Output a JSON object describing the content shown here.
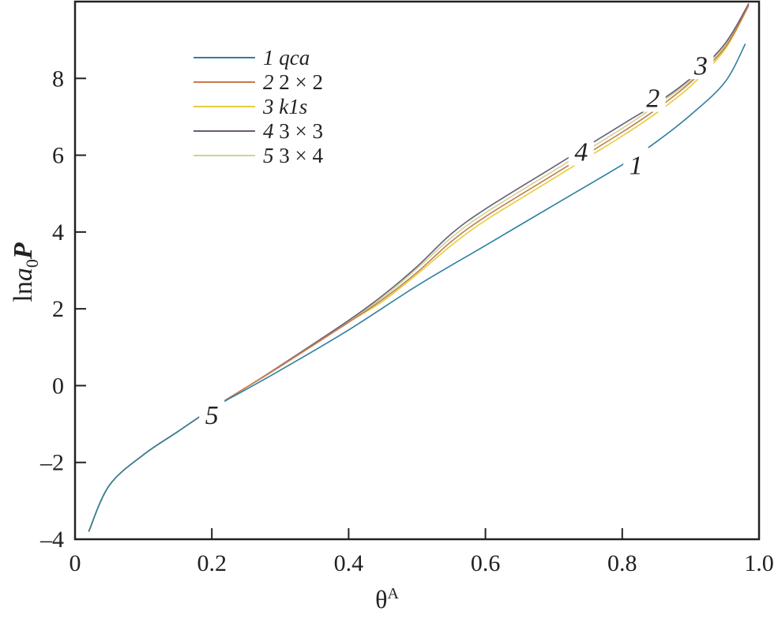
{
  "chart_data": {
    "type": "line",
    "title": "",
    "xlabel": "θ",
    "xlabel_sup": "A",
    "ylabel_prefix": "ln",
    "ylabel_a": "a",
    "ylabel_sub": "0",
    "ylabel_p": "P",
    "xlim": [
      0,
      1.0
    ],
    "ylim": [
      -4,
      10
    ],
    "xticks": [
      0,
      0.2,
      0.4,
      0.6,
      0.8,
      1.0
    ],
    "xtick_labels": [
      "0",
      "0.2",
      "0.4",
      "0.6",
      "0.8",
      "1.0"
    ],
    "yticks": [
      -4,
      -2,
      0,
      2,
      4,
      6,
      8
    ],
    "ytick_labels": [
      "–4",
      "–2",
      "0",
      "2",
      "4",
      "6",
      "8"
    ],
    "grid": false,
    "legend_position": "top-left",
    "series": [
      {
        "name": "qca",
        "num": "1",
        "color": "#2e7fa0",
        "x": [
          0.02,
          0.05,
          0.1,
          0.15,
          0.2,
          0.25,
          0.3,
          0.4,
          0.5,
          0.6,
          0.7,
          0.8,
          0.85,
          0.9,
          0.95,
          0.98
        ],
        "y": [
          -3.8,
          -2.6,
          -1.8,
          -1.2,
          -0.6,
          -0.1,
          0.4,
          1.45,
          2.6,
          3.65,
          4.7,
          5.75,
          6.35,
          7.05,
          7.9,
          8.9
        ]
      },
      {
        "name": "2 × 2",
        "num": "2",
        "color": "#c87a50",
        "x": [
          0.02,
          0.05,
          0.1,
          0.15,
          0.2,
          0.25,
          0.3,
          0.4,
          0.45,
          0.5,
          0.55,
          0.6,
          0.7,
          0.8,
          0.85,
          0.9,
          0.95,
          0.985
        ],
        "y": [
          -3.8,
          -2.6,
          -1.8,
          -1.2,
          -0.6,
          -0.05,
          0.5,
          1.65,
          2.25,
          2.95,
          3.75,
          4.4,
          5.5,
          6.6,
          7.2,
          7.9,
          8.8,
          9.9
        ]
      },
      {
        "name": "k1s",
        "num": "3",
        "color": "#e0cf3c",
        "x": [
          0.02,
          0.05,
          0.1,
          0.15,
          0.2,
          0.25,
          0.3,
          0.4,
          0.45,
          0.5,
          0.55,
          0.6,
          0.7,
          0.8,
          0.85,
          0.9,
          0.95,
          0.985
        ],
        "y": [
          -3.8,
          -2.6,
          -1.8,
          -1.2,
          -0.6,
          -0.05,
          0.5,
          1.65,
          2.2,
          2.9,
          3.65,
          4.3,
          5.4,
          6.5,
          7.1,
          7.8,
          8.75,
          9.9
        ]
      },
      {
        "name": "3 × 3",
        "num": "4",
        "color": "#6a5a7a",
        "x": [
          0.02,
          0.05,
          0.1,
          0.15,
          0.2,
          0.25,
          0.3,
          0.4,
          0.45,
          0.5,
          0.55,
          0.6,
          0.7,
          0.8,
          0.85,
          0.9,
          0.95,
          0.985
        ],
        "y": [
          -3.8,
          -2.6,
          -1.8,
          -1.2,
          -0.6,
          -0.05,
          0.52,
          1.7,
          2.35,
          3.1,
          3.95,
          4.6,
          5.7,
          6.8,
          7.35,
          8.0,
          8.9,
          9.95
        ]
      },
      {
        "name": "3 × 4",
        "num": "5",
        "color": "#c8d890",
        "x": [
          0.02,
          0.05,
          0.1,
          0.15,
          0.2,
          0.25,
          0.3,
          0.4,
          0.45,
          0.5,
          0.55,
          0.6,
          0.7,
          0.8,
          0.85,
          0.9,
          0.95,
          0.985
        ],
        "y": [
          -3.8,
          -2.6,
          -1.8,
          -1.2,
          -0.6,
          -0.05,
          0.5,
          1.68,
          2.3,
          3.05,
          3.85,
          4.5,
          5.6,
          6.7,
          7.3,
          7.95,
          8.85,
          9.9
        ]
      }
    ],
    "annotations": [
      {
        "text": "1",
        "x": 0.82,
        "y": 5.75
      },
      {
        "text": "2",
        "x": 0.845,
        "y": 7.5
      },
      {
        "text": "3",
        "x": 0.915,
        "y": 8.35
      },
      {
        "text": "4",
        "x": 0.74,
        "y": 6.1
      },
      {
        "text": "5",
        "x": 0.2,
        "y": -0.75
      }
    ]
  }
}
